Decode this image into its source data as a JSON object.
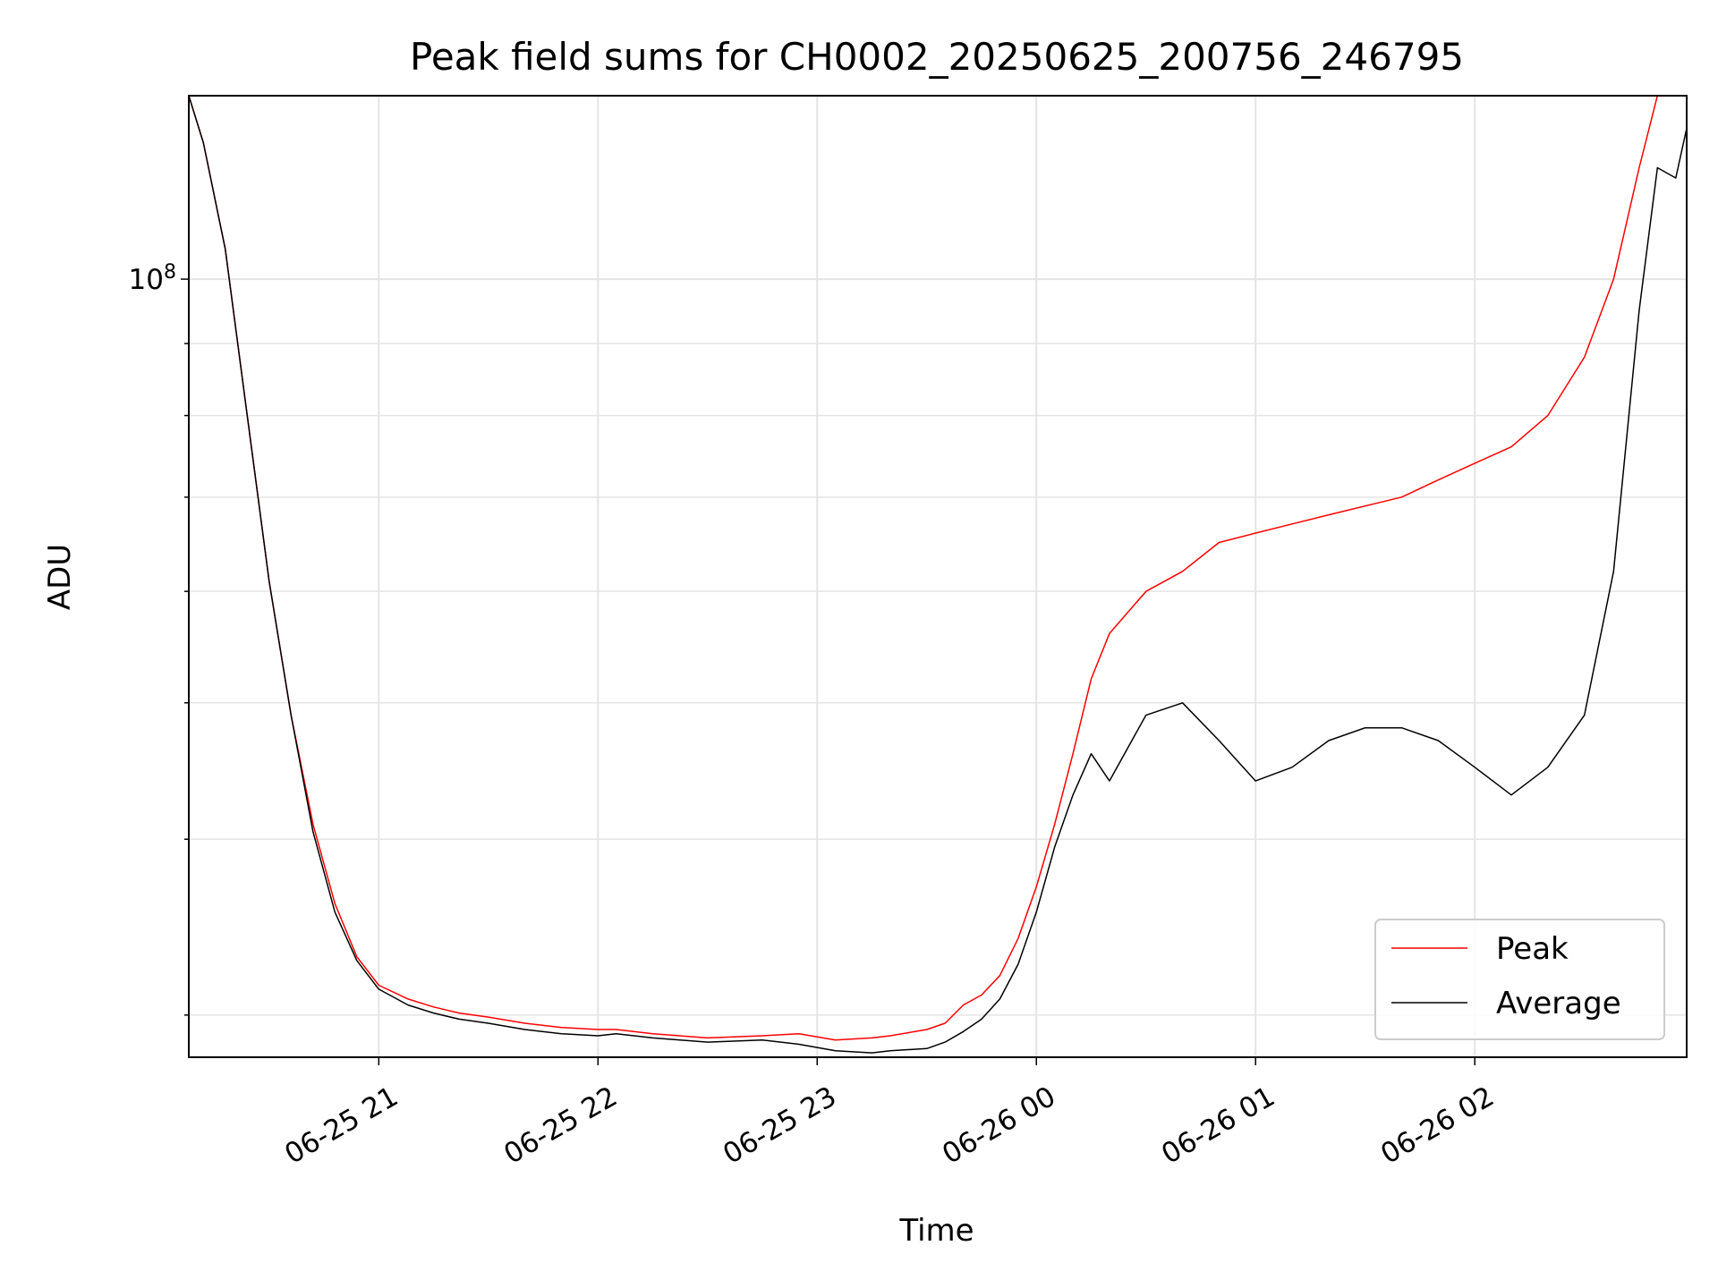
{
  "chart_data": {
    "type": "line",
    "title": "Peak field sums for CH0002_20250625_200756_246795",
    "xlabel": "Time",
    "ylabel": "ADU",
    "y_scale": "log",
    "ylim": [
      28000000,
      135000000
    ],
    "y_major_tick": {
      "value": 100000000,
      "label": "10^8",
      "base": "10",
      "exponent": "8"
    },
    "y_minor_ticks": [
      30000000,
      40000000,
      50000000,
      60000000,
      70000000,
      80000000,
      90000000,
      200000000
    ],
    "xlim": [
      "2025-06-25 20:08",
      "2025-06-26 02:58"
    ],
    "x_ticks": [
      {
        "time": "2025-06-25 21:00",
        "label": "06-25 21"
      },
      {
        "time": "2025-06-25 22:00",
        "label": "06-25 22"
      },
      {
        "time": "2025-06-25 23:00",
        "label": "06-25 23"
      },
      {
        "time": "2025-06-26 00:00",
        "label": "06-26 00"
      },
      {
        "time": "2025-06-26 01:00",
        "label": "06-26 01"
      },
      {
        "time": "2025-06-26 02:00",
        "label": "06-26 02"
      }
    ],
    "grid": true,
    "legend_position": "lower right",
    "series": [
      {
        "name": "Peak",
        "color": "#ff0000",
        "x": [
          "2025-06-25 20:08",
          "2025-06-25 20:12",
          "2025-06-25 20:18",
          "2025-06-25 20:24",
          "2025-06-25 20:30",
          "2025-06-25 20:36",
          "2025-06-25 20:42",
          "2025-06-25 20:48",
          "2025-06-25 20:54",
          "2025-06-25 21:00",
          "2025-06-25 21:08",
          "2025-06-25 21:15",
          "2025-06-25 21:22",
          "2025-06-25 21:30",
          "2025-06-25 21:40",
          "2025-06-25 21:50",
          "2025-06-25 22:00",
          "2025-06-25 22:05",
          "2025-06-25 22:15",
          "2025-06-25 22:30",
          "2025-06-25 22:45",
          "2025-06-25 22:55",
          "2025-06-25 23:05",
          "2025-06-25 23:15",
          "2025-06-25 23:20",
          "2025-06-25 23:30",
          "2025-06-25 23:35",
          "2025-06-25 23:40",
          "2025-06-25 23:45",
          "2025-06-25 23:50",
          "2025-06-25 23:55",
          "2025-06-26 00:00",
          "2025-06-26 00:05",
          "2025-06-26 00:10",
          "2025-06-26 00:15",
          "2025-06-26 00:20",
          "2025-06-26 00:30",
          "2025-06-26 00:40",
          "2025-06-26 00:50",
          "2025-06-26 01:00",
          "2025-06-26 01:10",
          "2025-06-26 01:20",
          "2025-06-26 01:30",
          "2025-06-26 01:40",
          "2025-06-26 01:50",
          "2025-06-26 02:00",
          "2025-06-26 02:10",
          "2025-06-26 02:20",
          "2025-06-26 02:30",
          "2025-06-26 02:38",
          "2025-06-26 02:45",
          "2025-06-26 02:50",
          "2025-06-26 02:55",
          "2025-06-26 02:58"
        ],
        "y": [
          135000000,
          125000000,
          105000000,
          80000000,
          61000000,
          49000000,
          41000000,
          36000000,
          33000000,
          31500000,
          30800000,
          30400000,
          30100000,
          29900000,
          29600000,
          29400000,
          29300000,
          29300000,
          29100000,
          28900000,
          29000000,
          29100000,
          28800000,
          28900000,
          29000000,
          29300000,
          29600000,
          30500000,
          31000000,
          32000000,
          34000000,
          37000000,
          41000000,
          46000000,
          52000000,
          56000000,
          60000000,
          62000000,
          65000000,
          66000000,
          67000000,
          68000000,
          69000000,
          70000000,
          72000000,
          74000000,
          76000000,
          80000000,
          88000000,
          100000000,
          120000000,
          135000000,
          135000000,
          135000000
        ]
      },
      {
        "name": "Average",
        "color": "#000000",
        "x": [
          "2025-06-25 20:08",
          "2025-06-25 20:12",
          "2025-06-25 20:18",
          "2025-06-25 20:24",
          "2025-06-25 20:30",
          "2025-06-25 20:36",
          "2025-06-25 20:42",
          "2025-06-25 20:48",
          "2025-06-25 20:54",
          "2025-06-25 21:00",
          "2025-06-25 21:08",
          "2025-06-25 21:15",
          "2025-06-25 21:22",
          "2025-06-25 21:30",
          "2025-06-25 21:40",
          "2025-06-25 21:50",
          "2025-06-25 22:00",
          "2025-06-25 22:05",
          "2025-06-25 22:15",
          "2025-06-25 22:30",
          "2025-06-25 22:45",
          "2025-06-25 22:55",
          "2025-06-25 23:05",
          "2025-06-25 23:15",
          "2025-06-25 23:20",
          "2025-06-25 23:30",
          "2025-06-25 23:35",
          "2025-06-25 23:40",
          "2025-06-25 23:45",
          "2025-06-25 23:50",
          "2025-06-25 23:55",
          "2025-06-26 00:00",
          "2025-06-26 00:05",
          "2025-06-26 00:10",
          "2025-06-26 00:15",
          "2025-06-26 00:20",
          "2025-06-26 00:30",
          "2025-06-26 00:40",
          "2025-06-26 00:50",
          "2025-06-26 01:00",
          "2025-06-26 01:10",
          "2025-06-26 01:20",
          "2025-06-26 01:30",
          "2025-06-26 01:40",
          "2025-06-26 01:50",
          "2025-06-26 02:00",
          "2025-06-26 02:10",
          "2025-06-26 02:20",
          "2025-06-26 02:30",
          "2025-06-26 02:38",
          "2025-06-26 02:45",
          "2025-06-26 02:50",
          "2025-06-26 02:55",
          "2025-06-26 02:58"
        ],
        "y": [
          135000000,
          125000000,
          105000000,
          80000000,
          61000000,
          49000000,
          40500000,
          35500000,
          32800000,
          31300000,
          30500000,
          30100000,
          29800000,
          29600000,
          29300000,
          29100000,
          29000000,
          29100000,
          28900000,
          28700000,
          28800000,
          28600000,
          28300000,
          28200000,
          28300000,
          28400000,
          28700000,
          29200000,
          29800000,
          30800000,
          32600000,
          35500000,
          39500000,
          43000000,
          46000000,
          44000000,
          49000000,
          50000000,
          47000000,
          44000000,
          45000000,
          47000000,
          48000000,
          48000000,
          47000000,
          45000000,
          43000000,
          45000000,
          49000000,
          62000000,
          95000000,
          120000000,
          118000000,
          128000000
        ]
      }
    ]
  }
}
